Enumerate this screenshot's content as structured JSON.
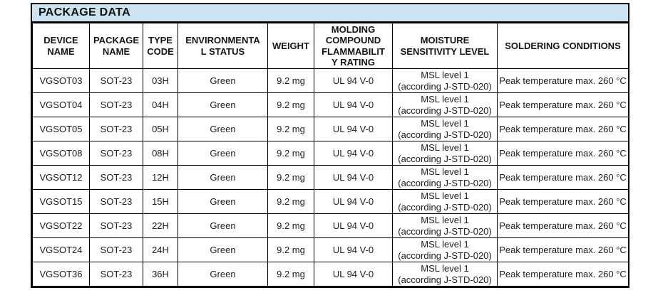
{
  "title": "PACKAGE DATA",
  "colors": {
    "title_bar_bg": "#cce3f2",
    "border": "#000000",
    "text": "#1a1a1a"
  },
  "table": {
    "headers": [
      "DEVICE\nNAME",
      "PACKAGE\nNAME",
      "TYPE\nCODE",
      "ENVIRONMENTA\nL STATUS",
      "WEIGHT",
      "MOLDING\nCOMPOUND\nFLAMMABILIT\nY RATING",
      "MOISTURE\nSENSITIVITY LEVEL",
      "SOLDERING CONDITIONS"
    ],
    "rows": [
      {
        "device_name": "VGSOT03",
        "package_name": "SOT-23",
        "type_code": "03H",
        "environmental_status": "Green",
        "weight": "9.2 mg",
        "flammability_rating": "UL 94 V-0",
        "moisture_sensitivity_level": "MSL level 1\n(according J-STD-020)",
        "soldering_conditions": "Peak temperature max. 260 °C"
      },
      {
        "device_name": "VGSOT04",
        "package_name": "SOT-23",
        "type_code": "04H",
        "environmental_status": "Green",
        "weight": "9.2 mg",
        "flammability_rating": "UL 94 V-0",
        "moisture_sensitivity_level": "MSL level 1\n(according J-STD-020)",
        "soldering_conditions": "Peak temperature max. 260 °C"
      },
      {
        "device_name": "VGSOT05",
        "package_name": "SOT-23",
        "type_code": "05H",
        "environmental_status": "Green",
        "weight": "9.2 mg",
        "flammability_rating": "UL 94 V-0",
        "moisture_sensitivity_level": "MSL level 1\n(according J-STD-020)",
        "soldering_conditions": "Peak temperature max. 260 °C"
      },
      {
        "device_name": "VGSOT08",
        "package_name": "SOT-23",
        "type_code": "08H",
        "environmental_status": "Green",
        "weight": "9.2 mg",
        "flammability_rating": "UL 94 V-0",
        "moisture_sensitivity_level": "MSL level 1\n(according J-STD-020)",
        "soldering_conditions": "Peak temperature max. 260 °C"
      },
      {
        "device_name": "VGSOT12",
        "package_name": "SOT-23",
        "type_code": "12H",
        "environmental_status": "Green",
        "weight": "9.2 mg",
        "flammability_rating": "UL 94 V-0",
        "moisture_sensitivity_level": "MSL level 1\n(according J-STD-020)",
        "soldering_conditions": "Peak temperature max. 260 °C"
      },
      {
        "device_name": "VGSOT15",
        "package_name": "SOT-23",
        "type_code": "15H",
        "environmental_status": "Green",
        "weight": "9.2 mg",
        "flammability_rating": "UL 94 V-0",
        "moisture_sensitivity_level": "MSL level 1\n(according J-STD-020)",
        "soldering_conditions": "Peak temperature max. 260 °C"
      },
      {
        "device_name": "VGSOT22",
        "package_name": "SOT-23",
        "type_code": "22H",
        "environmental_status": "Green",
        "weight": "9.2 mg",
        "flammability_rating": "UL 94 V-0",
        "moisture_sensitivity_level": "MSL level 1\n(according J-STD-020)",
        "soldering_conditions": "Peak temperature max. 260 °C"
      },
      {
        "device_name": "VGSOT24",
        "package_name": "SOT-23",
        "type_code": "24H",
        "environmental_status": "Green",
        "weight": "9.2 mg",
        "flammability_rating": "UL 94 V-0",
        "moisture_sensitivity_level": "MSL level 1\n(according J-STD-020)",
        "soldering_conditions": "Peak temperature max. 260 °C"
      },
      {
        "device_name": "VGSOT36",
        "package_name": "SOT-23",
        "type_code": "36H",
        "environmental_status": "Green",
        "weight": "9.2 mg",
        "flammability_rating": "UL 94 V-0",
        "moisture_sensitivity_level": "MSL level 1\n(according J-STD-020)",
        "soldering_conditions": "Peak temperature max. 260 °C"
      }
    ]
  }
}
